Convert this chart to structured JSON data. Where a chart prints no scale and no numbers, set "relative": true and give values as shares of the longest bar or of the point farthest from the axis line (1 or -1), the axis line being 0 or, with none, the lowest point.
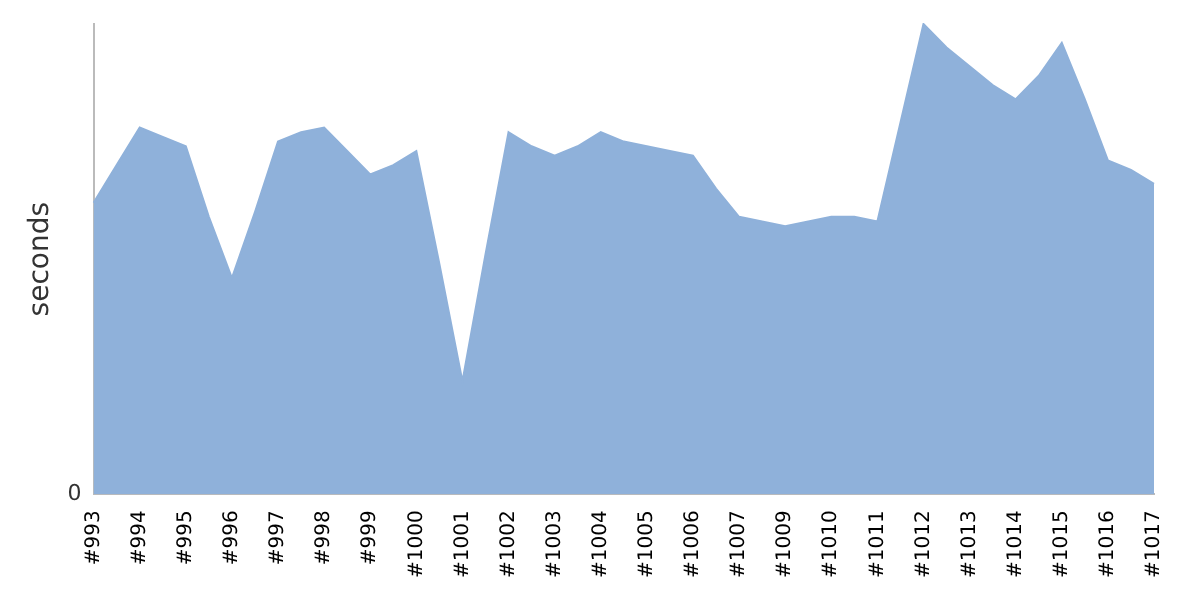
{
  "chart_data": {
    "type": "area",
    "ylabel": "seconds",
    "relative": true,
    "annotations": [
      "0"
    ],
    "grid": false,
    "legend": false,
    "categories": [
      "#993",
      null,
      "#994",
      null,
      "#995",
      null,
      "#996",
      null,
      "#997",
      null,
      "#998",
      null,
      "#999",
      null,
      "#1000",
      null,
      "#1001",
      null,
      "#1002",
      null,
      "#1003",
      null,
      "#1004",
      null,
      "#1005",
      null,
      "#1006",
      null,
      "#1007",
      null,
      "#1009",
      null,
      "#1010",
      null,
      "#1011",
      null,
      "#1012",
      null,
      "#1013",
      null,
      "#1014",
      null,
      "#1015",
      null,
      "#1016",
      null,
      "#1017"
    ],
    "series": [
      {
        "color": "#8fb1da",
        "values": [
          0.62,
          0.7,
          0.78,
          0.76,
          0.74,
          0.59,
          0.46,
          0.6,
          0.75,
          0.77,
          0.78,
          0.73,
          0.68,
          0.7,
          0.73,
          0.49,
          0.24,
          0.51,
          0.77,
          0.74,
          0.72,
          0.74,
          0.77,
          0.75,
          0.74,
          0.73,
          0.72,
          0.65,
          0.59,
          0.58,
          0.57,
          0.58,
          0.59,
          0.59,
          0.58,
          0.79,
          1,
          0.95,
          0.91,
          0.87,
          0.84,
          0.89,
          0.96,
          0.84,
          0.71,
          0.69,
          0.66
        ]
      }
    ]
  }
}
